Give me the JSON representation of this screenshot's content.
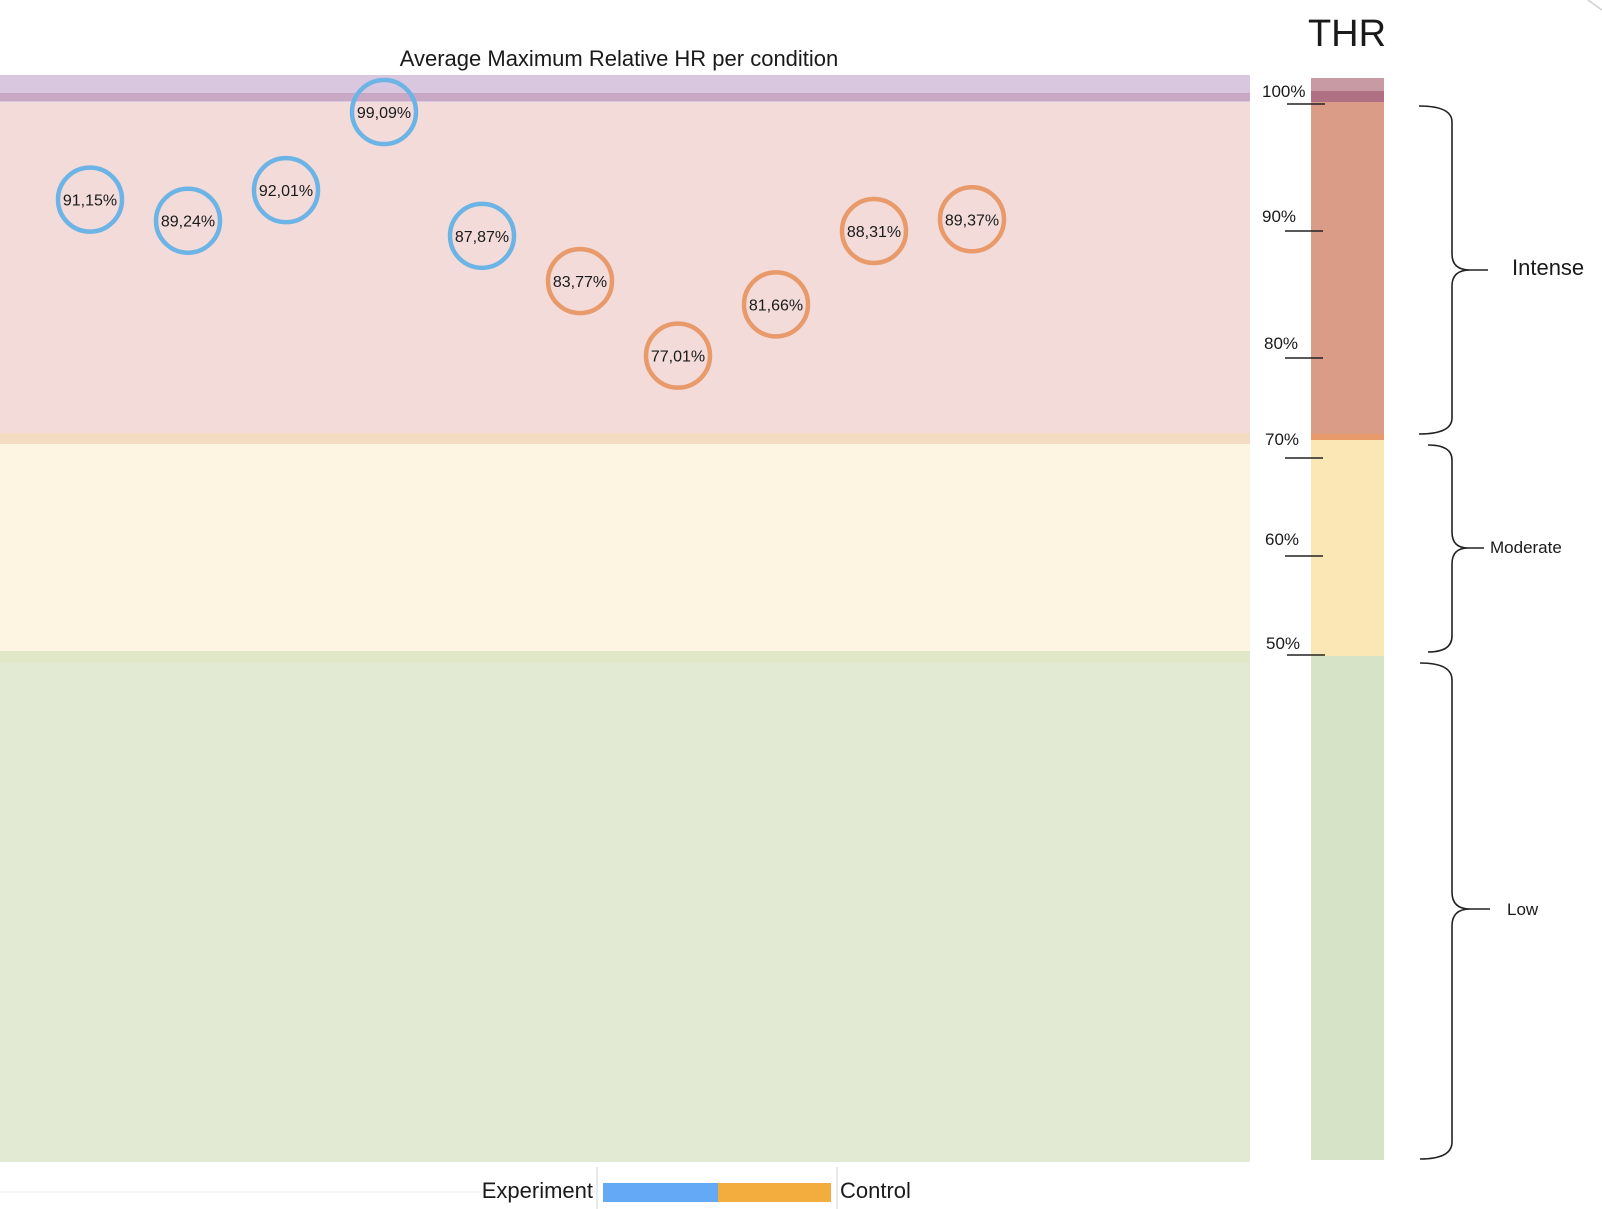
{
  "chart_data": {
    "type": "scatter",
    "title": "Average Maximum Relative HR per condition",
    "scale_title": "THR",
    "ylim": [
      0,
      100
    ],
    "y_ticks": [
      "100%",
      "90%",
      "80%",
      "70%",
      "60%",
      "50%"
    ],
    "series": [
      {
        "name": "Experiment",
        "color": "#6cb4e6",
        "values": [
          91.15,
          89.24,
          92.01,
          99.09,
          87.87
        ],
        "labels": [
          "91,15%",
          "89,24%",
          "92,01%",
          "99,09%",
          "87,87%"
        ]
      },
      {
        "name": "Control",
        "color": "#e89a6a",
        "values": [
          83.77,
          77.01,
          81.66,
          88.31,
          89.37
        ],
        "labels": [
          "83,77%",
          "77,01%",
          "81,66%",
          "88,31%",
          "89,37%"
        ]
      }
    ],
    "zones": [
      {
        "name": "Intense",
        "from": 70,
        "to": 100
      },
      {
        "name": "Moderate",
        "from": 50,
        "to": 70
      },
      {
        "name": "Low",
        "from": 0,
        "to": 50
      }
    ],
    "legend": {
      "left_label": "Experiment",
      "right_label": "Control",
      "placement": "bottom"
    },
    "colors": {
      "intense_bg": "#f2dbd9",
      "max_band_bg": "#d9c7df",
      "moderate_bg": "#fdf5e2",
      "low_bg": "#e2ead4",
      "thr_intense": "#db9c87",
      "thr_max": "#b98390",
      "thr_moderate": "#fbe7b6",
      "thr_low": "#d6e3c6",
      "experiment": "#6cb4e6",
      "control": "#e89a6a",
      "legend_blue": "#64a9f5",
      "legend_orange": "#f3ad3f"
    }
  }
}
